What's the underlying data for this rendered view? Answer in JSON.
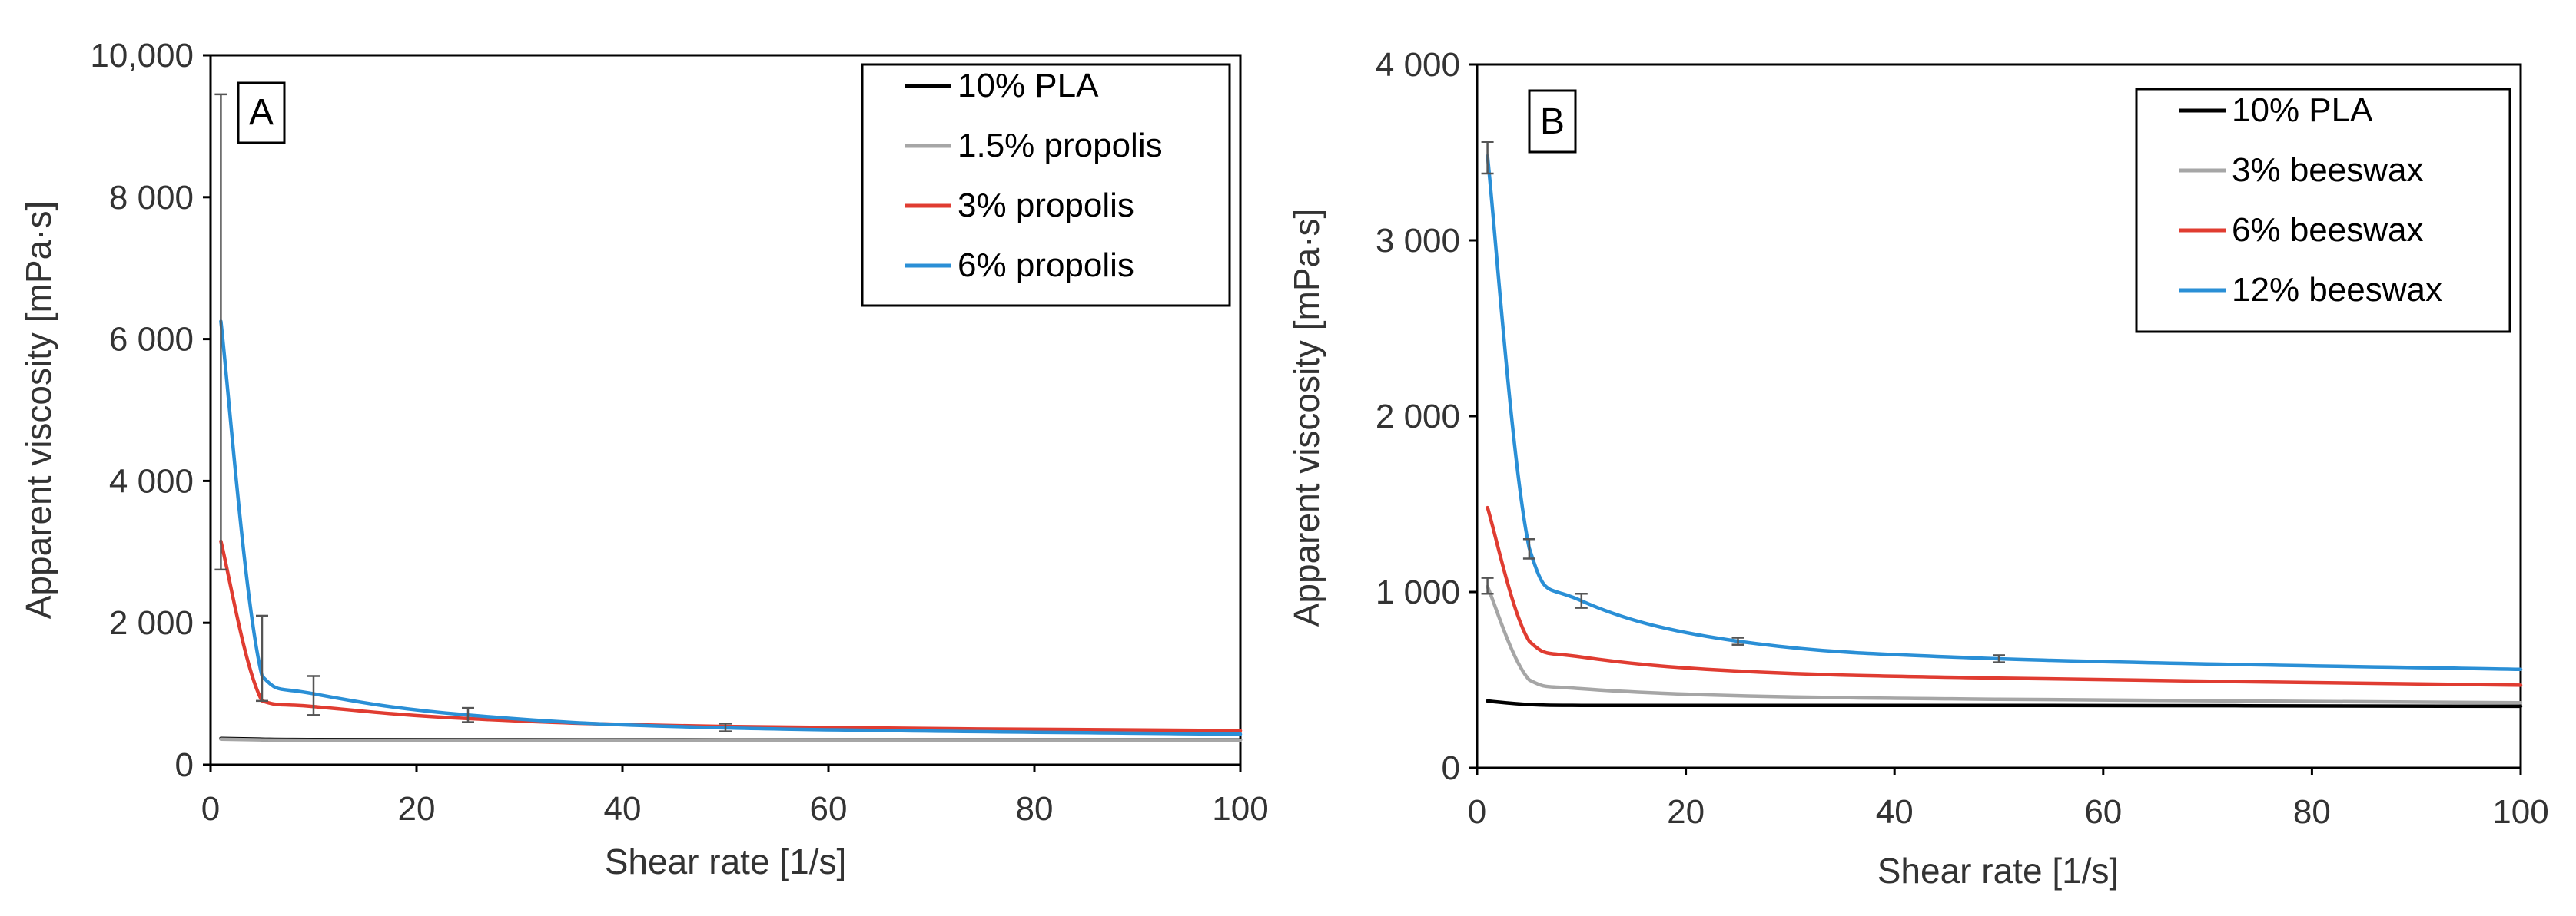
{
  "chart_data": [
    {
      "type": "line",
      "panel": "A",
      "xlabel": "Shear rate [1/s]",
      "ylabel": "Apparent viscosity [mPa·s]",
      "xlim": [
        0,
        100
      ],
      "ylim": [
        0,
        10000
      ],
      "x_ticks": [
        0,
        20,
        40,
        60,
        80,
        100
      ],
      "x_tick_labels": [
        "0",
        "20",
        "40",
        "60",
        "80",
        "100"
      ],
      "y_ticks": [
        0,
        2000,
        4000,
        6000,
        8000,
        10000
      ],
      "y_tick_labels": [
        "0",
        "2 000",
        "4 000",
        "6 000",
        "8 000",
        "10,000"
      ],
      "legend_position": "top-right",
      "x": [
        1,
        5,
        10,
        25,
        50,
        100
      ],
      "series": [
        {
          "name": "10% PLA",
          "color": "#000000",
          "values": [
            370,
            360,
            355,
            352,
            350,
            350
          ]
        },
        {
          "name": "1.5% propolis",
          "color": "#a6a6a6",
          "values": [
            360,
            350,
            345,
            345,
            345,
            345
          ]
        },
        {
          "name": "3% propolis",
          "color": "#e03c31",
          "values": [
            3150,
            900,
            820,
            650,
            540,
            480
          ]
        },
        {
          "name": "6% propolis",
          "color": "#2a8fd6",
          "values": [
            6250,
            1250,
            1000,
            700,
            520,
            430
          ]
        }
      ],
      "error_bars": [
        {
          "x": 1,
          "low": 2750,
          "high": 9450
        },
        {
          "x": 5,
          "low": 900,
          "high": 2100
        },
        {
          "x": 10,
          "low": 700,
          "high": 1250
        },
        {
          "x": 25,
          "low": 600,
          "high": 800
        },
        {
          "x": 50,
          "low": 470,
          "high": 580
        }
      ]
    },
    {
      "type": "line",
      "panel": "B",
      "xlabel": "Shear rate [1/s]",
      "ylabel": "Apparent viscosity [mPa·s]",
      "xlim": [
        0,
        100
      ],
      "ylim": [
        0,
        4000
      ],
      "x_ticks": [
        0,
        20,
        40,
        60,
        80,
        100
      ],
      "x_tick_labels": [
        "0",
        "20",
        "40",
        "60",
        "80",
        "100"
      ],
      "y_ticks": [
        0,
        1000,
        2000,
        3000,
        4000
      ],
      "y_tick_labels": [
        "0",
        "1 000",
        "2 000",
        "3 000",
        "4 000"
      ],
      "legend_position": "top-right",
      "x": [
        1,
        5,
        10,
        25,
        50,
        100
      ],
      "series": [
        {
          "name": "10% PLA",
          "color": "#000000",
          "values": [
            380,
            360,
            355,
            355,
            355,
            350
          ]
        },
        {
          "name": "3% beeswax",
          "color": "#a6a6a6",
          "values": [
            1030,
            500,
            450,
            410,
            390,
            370
          ]
        },
        {
          "name": "6% beeswax",
          "color": "#e03c31",
          "values": [
            1480,
            720,
            630,
            550,
            510,
            470
          ]
        },
        {
          "name": "12% beeswax",
          "color": "#2a8fd6",
          "values": [
            3480,
            1250,
            950,
            720,
            620,
            560
          ]
        }
      ],
      "error_bars": [
        {
          "x": 1,
          "low": 3380,
          "high": 3560
        },
        {
          "x": 1,
          "low": 990,
          "high": 1080
        },
        {
          "x": 5,
          "low": 1190,
          "high": 1300
        },
        {
          "x": 10,
          "low": 910,
          "high": 990
        },
        {
          "x": 25,
          "low": 700,
          "high": 740
        },
        {
          "x": 50,
          "low": 600,
          "high": 640
        }
      ]
    }
  ]
}
